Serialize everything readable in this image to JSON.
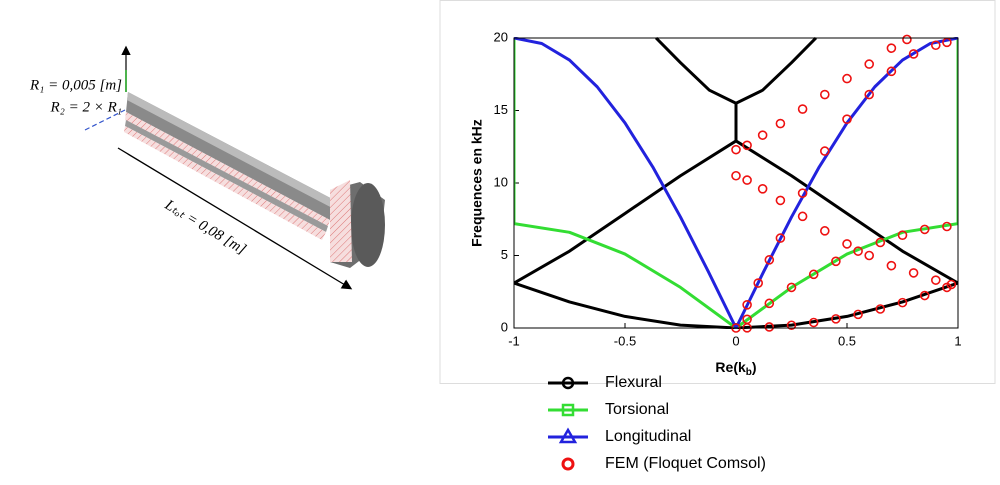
{
  "figure": {
    "labels": {
      "r1": "R₁ = 0,005 [m]",
      "r2": "R₂ = 2 × R₁",
      "ltot": "Lₜₒₜ = 0,08 [m]"
    }
  },
  "chart_data": {
    "type": "line",
    "ylabel": "Frequences en kHz",
    "xlabel": [
      "Re(k",
      "b",
      ")"
    ],
    "xlim": [
      -1,
      1
    ],
    "ylim": [
      0,
      20
    ],
    "xticks": [
      -1,
      -0.5,
      0,
      0.5,
      1
    ],
    "yticks": [
      0,
      5,
      10,
      15,
      20
    ],
    "series": [
      {
        "name": "Flexural",
        "color": "#000000",
        "marker": "circle",
        "line": true,
        "x": [
          -1,
          -0.75,
          -0.5,
          -0.25,
          0,
          0.25,
          0.5,
          0.75,
          1,
          null,
          -1,
          -0.75,
          -0.5,
          -0.25,
          0,
          0.25,
          0.5,
          0.75,
          1,
          null,
          0,
          0,
          null,
          -0.36,
          -0.25,
          -0.12,
          0,
          0.12,
          0.25,
          0.36
        ],
        "values": [
          3.1,
          1.8,
          0.8,
          0.2,
          0,
          0.2,
          0.8,
          1.8,
          3.1,
          null,
          3.1,
          5.3,
          7.9,
          10.5,
          12.9,
          10.5,
          7.9,
          5.3,
          3.1,
          null,
          12.9,
          15.5,
          null,
          20,
          18.3,
          16.4,
          15.5,
          16.4,
          18.3,
          20
        ]
      },
      {
        "name": "Torsional",
        "color": "#33dd33",
        "marker": "square",
        "line": true,
        "x": [
          -1,
          -1,
          -0.75,
          -0.5,
          -0.25,
          0,
          0.25,
          0.5,
          0.75,
          1,
          1
        ],
        "values": [
          20,
          7.2,
          6.6,
          5.1,
          2.8,
          0,
          2.8,
          5.1,
          6.6,
          7.2,
          20
        ]
      },
      {
        "name": "Longitudinal",
        "color": "#2222dd",
        "marker": "triangle",
        "line": true,
        "x": [
          -1,
          -0.875,
          -0.75,
          -0.625,
          -0.5,
          -0.375,
          -0.25,
          -0.125,
          0,
          0.125,
          0.25,
          0.375,
          0.5,
          0.625,
          0.75,
          0.875,
          1
        ],
        "values": [
          20,
          19.62,
          18.48,
          16.63,
          14.14,
          11.11,
          7.65,
          3.9,
          0,
          3.9,
          7.65,
          11.11,
          14.14,
          16.63,
          18.48,
          19.62,
          20
        ]
      },
      {
        "name": "FEM (Floquet Comsol)",
        "color": "#ee1111",
        "marker": "circle",
        "line": false,
        "x": [
          0,
          0.05,
          0.15,
          0.25,
          0.35,
          0.45,
          0.55,
          0.65,
          0.75,
          0.85,
          0.95,
          0.05,
          0.15,
          0.25,
          0.35,
          0.45,
          0.55,
          0.65,
          0.75,
          0.85,
          0.95,
          0.05,
          0.1,
          0.15,
          0.2,
          0.3,
          0.4,
          0.5,
          0.6,
          0.7,
          0.8,
          0.9,
          0.95,
          0,
          0.05,
          0.12,
          0.2,
          0.3,
          0.4,
          0.5,
          0.6,
          0.7,
          0.77,
          0,
          0.05,
          0.12,
          0.2,
          0.3,
          0.4,
          0.5,
          0.6,
          0.7,
          0.8,
          0.9,
          0.97
        ],
        "values": [
          0,
          0.01,
          0.07,
          0.19,
          0.38,
          0.63,
          0.94,
          1.31,
          1.75,
          2.24,
          2.8,
          0.6,
          1.7,
          2.8,
          3.7,
          4.6,
          5.3,
          5.9,
          6.4,
          6.8,
          7.0,
          1.6,
          3.1,
          4.7,
          6.2,
          9.3,
          12.2,
          14.4,
          16.1,
          17.7,
          18.9,
          19.5,
          19.7,
          12.3,
          12.6,
          13.3,
          14.1,
          15.1,
          16.1,
          17.2,
          18.2,
          19.3,
          19.9,
          10.5,
          10.2,
          9.6,
          8.8,
          7.7,
          6.7,
          5.8,
          5.0,
          4.3,
          3.8,
          3.3,
          3.0
        ]
      }
    ]
  }
}
